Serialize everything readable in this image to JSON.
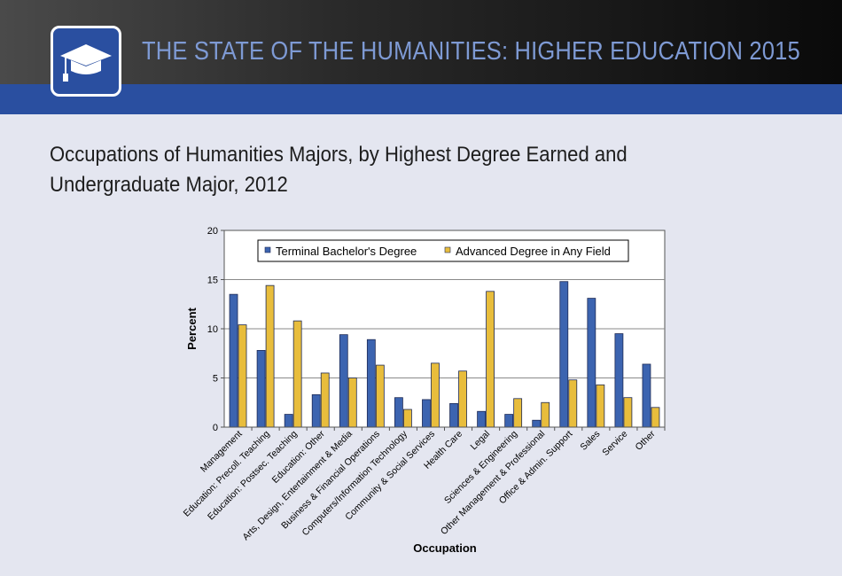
{
  "header": {
    "title": "THE STATE OF THE HUMANITIES: HIGHER EDUCATION 2015",
    "logo_icon": "graduation-cap-icon",
    "colors": {
      "band": "#2a4fa0",
      "title": "#7e9ad4"
    }
  },
  "chart_title_line1": "Occupations of Humanities Majors, by Highest Degree Earned and",
  "chart_title_line2": "Undergraduate Major, 2012",
  "chart_data": {
    "type": "bar",
    "xlabel": "Occupation",
    "ylabel": "Percent",
    "ylim": [
      0,
      20
    ],
    "yticks": [
      0,
      5,
      10,
      15,
      20
    ],
    "grid": true,
    "legend_position": "top",
    "categories": [
      "Management",
      "Education: Precoll. Teaching",
      "Education: Postsec. Teaching",
      "Education: Other",
      "Arts, Design, Entertainment & Media",
      "Business & Financial Operations",
      "Computers/Information Technology",
      "Community & Social Services",
      "Health Care",
      "Legal",
      "Sciences & Engineering",
      "Other Management & Professional",
      "Office & Admin. Support",
      "Sales",
      "Service",
      "Other"
    ],
    "series": [
      {
        "name": "Terminal Bachelor's Degree",
        "color": "#3c64b0",
        "values": [
          13.5,
          7.8,
          1.3,
          3.3,
          9.4,
          8.9,
          3.0,
          2.8,
          2.4,
          1.6,
          1.3,
          0.7,
          14.8,
          13.1,
          9.5,
          6.4
        ]
      },
      {
        "name": "Advanced Degree in Any Field",
        "color": "#e8bd3c",
        "values": [
          10.4,
          14.4,
          10.8,
          5.5,
          5.0,
          6.3,
          1.8,
          6.5,
          5.7,
          13.8,
          2.9,
          2.5,
          4.8,
          4.3,
          3.0,
          2.0
        ]
      }
    ]
  }
}
